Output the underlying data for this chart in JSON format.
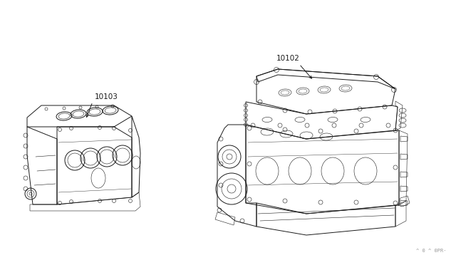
{
  "background_color": "#ffffff",
  "line_color": "#1a1a1a",
  "label_color": "#1a1a1a",
  "part_label_1": "10103",
  "part_label_2": "10102",
  "watermark": "^ 0 ^ 0PR·",
  "figsize": [
    6.4,
    3.72
  ],
  "dpi": 100,
  "lw_main": 0.7,
  "lw_thin": 0.4,
  "lw_detail": 0.3
}
